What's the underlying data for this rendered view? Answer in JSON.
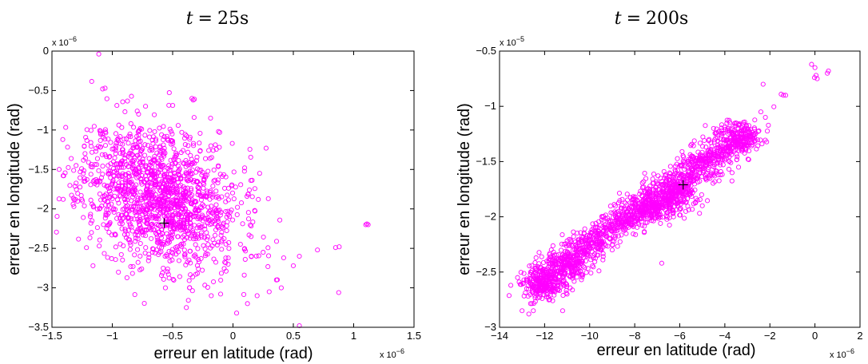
{
  "chart_data": [
    {
      "type": "scatter",
      "title_var": "t",
      "title_eq": "=",
      "title_val": "25s",
      "xlabel": "erreur en latitude (rad)",
      "ylabel": "erreur en longitude (rad)",
      "xlim": [
        -1.5,
        1.5
      ],
      "ylim": [
        -3.5,
        0
      ],
      "xticks": [
        -1.5,
        -1,
        -0.5,
        0,
        0.5,
        1,
        1.5
      ],
      "yticks": [
        -3.5,
        -3,
        -2.5,
        -2,
        -1.5,
        -1,
        -0.5,
        0
      ],
      "xtick_labels": [
        "−1.5",
        "−1",
        "−0.5",
        "0",
        "0.5",
        "1",
        "1.5"
      ],
      "ytick_labels": [
        "−3.5",
        "−3",
        "−2.5",
        "−2",
        "−1.5",
        "−1",
        "−0.5",
        "0"
      ],
      "x_exponent_base": "x 10",
      "x_exponent_power": "−6",
      "y_exponent_base": "x 10",
      "y_exponent_power": "−6",
      "marker_color": "#ff00ff",
      "mean_point": {
        "x": -0.57,
        "y": -2.18
      },
      "cloud": {
        "type": "blob",
        "center": [
          -0.6,
          -1.85
        ],
        "sd_x": 0.32,
        "sd_y": 0.45,
        "correlation": -0.25,
        "n_points": 1500,
        "seed": 11
      },
      "points": [
        {
          "x": -1.08,
          "y": -0.48
        },
        {
          "x": -1.06,
          "y": -0.47
        },
        {
          "x": -0.34,
          "y": -0.6
        },
        {
          "x": -0.33,
          "y": -0.62
        },
        {
          "x": -0.32,
          "y": -0.61
        },
        {
          "x": -0.12,
          "y": -1.02
        },
        {
          "x": -0.11,
          "y": -1.03
        },
        {
          "x": 1.1,
          "y": -2.2
        },
        {
          "x": 1.11,
          "y": -2.19
        },
        {
          "x": 1.12,
          "y": -2.2
        },
        {
          "x": 0.88,
          "y": -2.48
        },
        {
          "x": 0.85,
          "y": -2.49
        },
        {
          "x": 0.7,
          "y": -2.52
        },
        {
          "x": 0.55,
          "y": -2.6
        },
        {
          "x": 0.5,
          "y": -2.72
        },
        {
          "x": 0.42,
          "y": -2.62
        },
        {
          "x": 0.36,
          "y": -2.9
        },
        {
          "x": 0.4,
          "y": -3.0
        },
        {
          "x": 0.3,
          "y": -3.05
        },
        {
          "x": 0.2,
          "y": -3.1
        },
        {
          "x": 0.12,
          "y": -3.2
        },
        {
          "x": 0.03,
          "y": -3.32
        },
        {
          "x": -0.18,
          "y": -3.1
        },
        {
          "x": -0.36,
          "y": -3.0
        },
        {
          "x": -0.56,
          "y": -3.0
        },
        {
          "x": 0.55,
          "y": -3.48
        },
        {
          "x": -1.16,
          "y": -2.72
        },
        {
          "x": -1.3,
          "y": -1.45
        },
        {
          "x": -1.24,
          "y": -1.55
        },
        {
          "x": 0.18,
          "y": -2.02
        },
        {
          "x": 0.21,
          "y": -1.88
        },
        {
          "x": 0.15,
          "y": -2.35
        },
        {
          "x": 0.25,
          "y": -2.55
        }
      ]
    },
    {
      "type": "scatter",
      "title_var": "t",
      "title_eq": "=",
      "title_val": "200s",
      "xlabel": "erreur en latitude (rad)",
      "ylabel": "erreur en longitude (rad)",
      "xlim": [
        -14,
        2
      ],
      "ylim": [
        -3,
        -0.5
      ],
      "xticks": [
        -14,
        -12,
        -10,
        -8,
        -6,
        -4,
        -2,
        0,
        2
      ],
      "yticks": [
        -3,
        -2.5,
        -2,
        -1.5,
        -1,
        -0.5
      ],
      "xtick_labels": [
        "−14",
        "−12",
        "−10",
        "−8",
        "−6",
        "−4",
        "−2",
        "0",
        "2"
      ],
      "ytick_labels": [
        "−3",
        "−2.5",
        "−2",
        "−1.5",
        "−1",
        "−0.5"
      ],
      "x_exponent_base": "x 10",
      "x_exponent_power": "−6",
      "y_exponent_base": "x 10",
      "y_exponent_power": "−5",
      "marker_color": "#ff00ff",
      "mean_point": {
        "x": -5.85,
        "y": -1.71
      },
      "cloud": {
        "type": "line",
        "from": [
          -12.5,
          -2.62
        ],
        "to": [
          -3.2,
          -1.25
        ],
        "spread_along": 1.0,
        "spread_perp_x": 0.45,
        "spread_perp_y": 0.07,
        "n_points": 1300,
        "seed": 29
      },
      "clusters": [
        {
          "x": -12.0,
          "y": -2.62,
          "sx": 0.45,
          "sy": 0.07,
          "n": 160
        },
        {
          "x": -10.8,
          "y": -2.45,
          "sx": 0.4,
          "sy": 0.06,
          "n": 80
        },
        {
          "x": -7.0,
          "y": -1.9,
          "sx": 0.6,
          "sy": 0.07,
          "n": 200
        },
        {
          "x": -6.0,
          "y": -1.78,
          "sx": 0.4,
          "sy": 0.06,
          "n": 120
        },
        {
          "x": -3.2,
          "y": -1.28,
          "sx": 0.4,
          "sy": 0.07,
          "n": 130
        }
      ],
      "points": [
        {
          "x": -0.15,
          "y": -0.62
        },
        {
          "x": 0.0,
          "y": -0.65
        },
        {
          "x": 0.05,
          "y": -0.72
        },
        {
          "x": -0.02,
          "y": -0.74
        },
        {
          "x": 0.1,
          "y": -0.75
        },
        {
          "x": 0.55,
          "y": -0.7
        },
        {
          "x": 0.6,
          "y": -0.68
        },
        {
          "x": -2.3,
          "y": -0.8
        },
        {
          "x": -1.5,
          "y": -0.89
        },
        {
          "x": -1.4,
          "y": -0.9
        },
        {
          "x": -1.3,
          "y": -0.9
        },
        {
          "x": -2.2,
          "y": -1.1
        },
        {
          "x": -2.4,
          "y": -1.05
        },
        {
          "x": -4.5,
          "y": -1.2
        },
        {
          "x": -4.7,
          "y": -1.3
        },
        {
          "x": -4.2,
          "y": -1.4
        },
        {
          "x": -4.0,
          "y": -1.38
        },
        {
          "x": -13.0,
          "y": -2.85
        },
        {
          "x": -13.5,
          "y": -2.62
        },
        {
          "x": -13.2,
          "y": -2.55
        },
        {
          "x": -12.5,
          "y": -2.85
        },
        {
          "x": -12.7,
          "y": -2.88
        },
        {
          "x": -11.0,
          "y": -2.7
        },
        {
          "x": -11.2,
          "y": -2.85
        },
        {
          "x": -11.8,
          "y": -2.38
        },
        {
          "x": -11.6,
          "y": -2.32
        },
        {
          "x": -9.0,
          "y": -2.3
        },
        {
          "x": -8.8,
          "y": -2.0
        },
        {
          "x": -6.8,
          "y": -2.42
        },
        {
          "x": -5.2,
          "y": -1.65
        },
        {
          "x": -5.8,
          "y": -1.5
        },
        {
          "x": -5.0,
          "y": -1.9
        },
        {
          "x": -4.3,
          "y": -1.62
        },
        {
          "x": -3.8,
          "y": -1.5
        }
      ]
    }
  ]
}
